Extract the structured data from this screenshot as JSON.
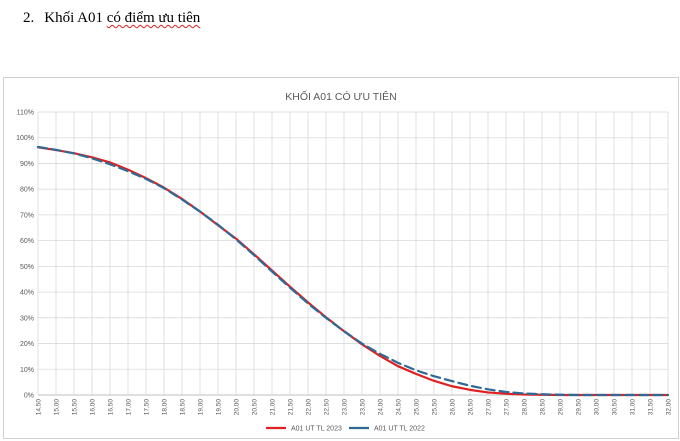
{
  "document": {
    "section_number": "2.",
    "heading_plain": "Khối A01",
    "heading_underlined": "có điểm ưu tiên"
  },
  "chart_data": {
    "type": "line",
    "title": "KHỐI A01 CÓ ƯU TIÊN",
    "xlabel": "",
    "ylabel": "",
    "x": [
      "14,50",
      "15,00",
      "15,50",
      "16,00",
      "16,50",
      "17,00",
      "17,50",
      "18,00",
      "18,50",
      "19,00",
      "19,50",
      "20,00",
      "20,50",
      "21,00",
      "21,50",
      "22,00",
      "22,50",
      "23,00",
      "23,50",
      "24,00",
      "24,50",
      "25,00",
      "25,50",
      "26,00",
      "26,50",
      "27,00",
      "27,50",
      "28,00",
      "28,50",
      "29,00",
      "29,50",
      "30,00",
      "30,50",
      "31,00",
      "31,50",
      "32,00"
    ],
    "y_ticks": [
      "0%",
      "10%",
      "20%",
      "30%",
      "40%",
      "50%",
      "60%",
      "70%",
      "80%",
      "90%",
      "100%",
      "110%"
    ],
    "ylim": [
      0,
      110
    ],
    "grid": true,
    "legend_position": "bottom",
    "series": [
      {
        "name": "A01 UT TL 2023",
        "color": "#e02020",
        "dash": false,
        "values": [
          96.3,
          95.2,
          94.0,
          92.4,
          90.4,
          87.6,
          84.3,
          80.6,
          76.2,
          71.3,
          66.0,
          60.8,
          54.7,
          48.4,
          42.1,
          36.0,
          30.2,
          24.8,
          19.7,
          15.2,
          11.2,
          8.2,
          5.5,
          3.4,
          2.0,
          1.0,
          0.5,
          0.2,
          0.1,
          0.0,
          0.0,
          0.0,
          0.0,
          0.0,
          0.0,
          0.0
        ]
      },
      {
        "name": "A01 UT TL 2022",
        "color": "#2e6a96",
        "dash": true,
        "values": [
          96.4,
          95.3,
          93.9,
          92.0,
          89.7,
          87.0,
          84.0,
          80.4,
          76.0,
          71.3,
          66.2,
          60.5,
          54.4,
          48.0,
          41.7,
          35.6,
          30.0,
          24.8,
          20.0,
          16.0,
          12.5,
          9.6,
          7.3,
          5.4,
          3.6,
          2.2,
          1.2,
          0.6,
          0.3,
          0.1,
          0.0,
          0.0,
          0.0,
          0.0,
          0.0,
          0.0
        ]
      }
    ]
  }
}
